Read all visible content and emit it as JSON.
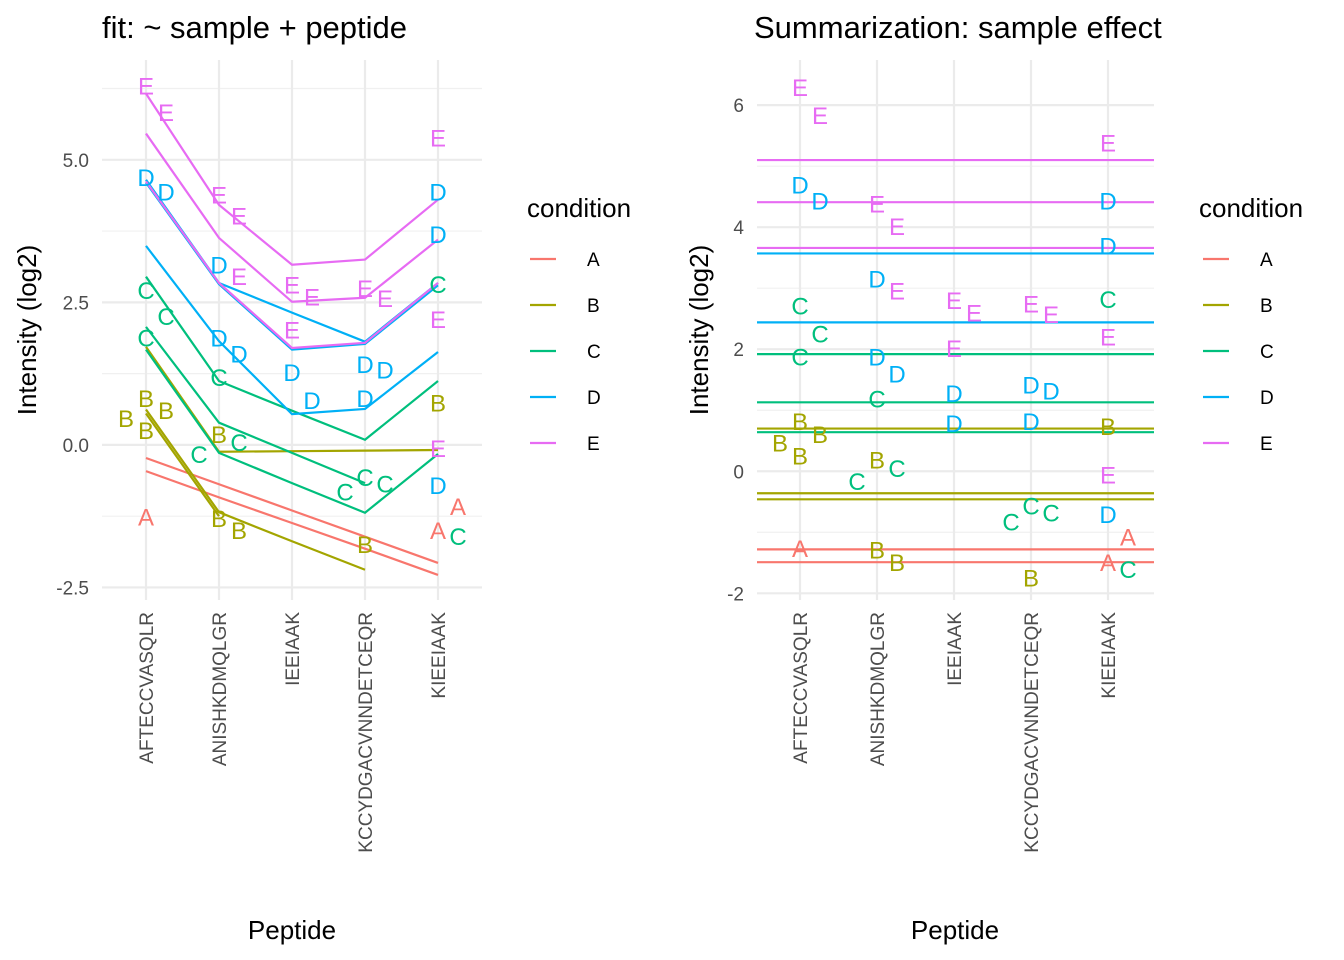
{
  "colors": {
    "A": "#F8766D",
    "B": "#A3A500",
    "C": "#00BF7D",
    "D": "#00B0F6",
    "E": "#E76BF3"
  },
  "legend": {
    "title": "condition",
    "items": [
      "A",
      "B",
      "C",
      "D",
      "E"
    ]
  },
  "chart_data": [
    {
      "type": "line",
      "title": "fit: ~ sample + peptide",
      "xlabel": "Peptide",
      "ylabel": "Intensity (log2)",
      "categories": [
        "AFTECCVASQLR",
        "ANISHKDMQLGR",
        "IEEIAAK",
        "KCCYDGACVNNDETCEQR",
        "KIEEIAAK"
      ],
      "yticks": [
        -2.5,
        0.0,
        2.5,
        5.0
      ],
      "ytick_labels": [
        "-2.5",
        "0.0",
        "2.5",
        "5.0"
      ],
      "ylim": [
        -2.72,
        6.75
      ],
      "points": [
        [
          "E",
          0,
          6.3
        ],
        [
          "E",
          0,
          5.84
        ],
        [
          "D",
          0,
          4.7
        ],
        [
          "D",
          0,
          4.44
        ],
        [
          "C",
          0,
          2.72
        ],
        [
          "C",
          0,
          2.26
        ],
        [
          "C",
          0,
          1.88
        ],
        [
          "B",
          0,
          0.82
        ],
        [
          "B",
          0,
          0.61
        ],
        [
          "B",
          0,
          0.47
        ],
        [
          "B",
          0,
          0.26
        ],
        [
          "A",
          0,
          -1.26
        ],
        [
          "E",
          1,
          4.39
        ],
        [
          "E",
          1,
          4.02
        ],
        [
          "D",
          1,
          3.16
        ],
        [
          "E",
          1,
          2.96
        ],
        [
          "D",
          1,
          1.88
        ],
        [
          "D",
          1,
          1.6
        ],
        [
          "C",
          1,
          1.19
        ],
        [
          "B",
          1,
          0.19
        ],
        [
          "C",
          1,
          0.05
        ],
        [
          "C",
          1,
          -0.16
        ],
        [
          "B",
          1,
          -1.28
        ],
        [
          "B",
          1,
          -1.49
        ],
        [
          "E",
          2,
          2.81
        ],
        [
          "E",
          2,
          2.6
        ],
        [
          "E",
          2,
          2.02
        ],
        [
          "D",
          2,
          1.28
        ],
        [
          "D",
          2,
          0.79
        ],
        [
          "E",
          3,
          2.75
        ],
        [
          "E",
          3,
          2.58
        ],
        [
          "D",
          3,
          1.42
        ],
        [
          "D",
          3,
          1.32
        ],
        [
          "D",
          3,
          0.82
        ],
        [
          "C",
          3,
          -0.56
        ],
        [
          "C",
          3,
          -0.68
        ],
        [
          "C",
          3,
          -0.82
        ],
        [
          "B",
          3,
          -1.74
        ],
        [
          "E",
          4,
          5.39
        ],
        [
          "D",
          4,
          4.44
        ],
        [
          "D",
          4,
          3.7
        ],
        [
          "C",
          4,
          2.82
        ],
        [
          "E",
          4,
          2.21
        ],
        [
          "B",
          4,
          0.74
        ],
        [
          "E",
          4,
          -0.05
        ],
        [
          "D",
          4,
          -0.7
        ],
        [
          "A",
          4,
          -1.07
        ],
        [
          "A",
          4,
          -1.49
        ],
        [
          "C",
          4,
          -1.6
        ]
      ],
      "series": [
        {
          "name": "A",
          "values": [
            -0.23,
            -0.69,
            -1.15,
            -1.61,
            -2.07
          ]
        },
        {
          "name": "A",
          "values": [
            -0.46,
            -0.92,
            -1.37,
            -1.82,
            -2.28
          ]
        },
        {
          "name": "B",
          "values": [
            1.72,
            -0.12,
            -0.11,
            -0.1,
            -0.09
          ]
        },
        {
          "name": "B",
          "values": [
            0.62,
            -1.18,
            -1.69,
            -2.19,
            null
          ]
        },
        {
          "name": "B",
          "values": [
            0.55,
            -1.25,
            null,
            null,
            null
          ]
        },
        {
          "name": "C",
          "values": [
            2.95,
            1.12,
            0.6,
            0.09,
            1.12
          ]
        },
        {
          "name": "C",
          "values": [
            2.07,
            0.39,
            -0.14,
            -0.67,
            null
          ]
        },
        {
          "name": "C",
          "values": [
            1.67,
            -0.14,
            -0.67,
            -1.19,
            -0.16
          ]
        },
        {
          "name": "D",
          "values": [
            4.65,
            2.84,
            2.32,
            1.81,
            2.84
          ]
        },
        {
          "name": "D",
          "values": [
            4.6,
            2.82,
            1.67,
            1.77,
            2.8
          ]
        },
        {
          "name": "D",
          "values": [
            3.49,
            1.82,
            0.54,
            0.63,
            1.63
          ]
        },
        {
          "name": "E",
          "values": [
            6.16,
            4.21,
            3.16,
            3.25,
            4.3
          ]
        },
        {
          "name": "E",
          "values": [
            5.46,
            3.63,
            2.51,
            2.58,
            3.6
          ]
        },
        {
          "name": "E",
          "values": [
            4.62,
            2.84,
            1.7,
            1.79,
            2.84
          ]
        }
      ]
    },
    {
      "type": "line",
      "title": "Summarization: sample effect",
      "xlabel": "Peptide",
      "ylabel": "Intensity (log2)",
      "categories": [
        "AFTECCVASQLR",
        "ANISHKDMQLGR",
        "IEEIAAK",
        "KCCYDGACVNNDETCEQR",
        "KIEEIAAK"
      ],
      "yticks": [
        -2,
        0,
        2,
        4,
        6
      ],
      "ytick_labels": [
        "-2",
        "0",
        "2",
        "4",
        "6"
      ],
      "ylim": [
        -2.11,
        6.74
      ],
      "points": "same as first chart",
      "hlines": [
        {
          "name": "E",
          "value": 5.1
        },
        {
          "name": "E",
          "value": 4.41
        },
        {
          "name": "E",
          "value": 3.66
        },
        {
          "name": "D",
          "value": 3.57
        },
        {
          "name": "D",
          "value": 2.44
        },
        {
          "name": "C",
          "value": 1.92
        },
        {
          "name": "C",
          "value": 1.13
        },
        {
          "name": "C",
          "value": 0.64
        },
        {
          "name": "B",
          "value": 0.7
        },
        {
          "name": "B",
          "value": -0.36
        },
        {
          "name": "B",
          "value": -0.46
        },
        {
          "name": "A",
          "value": -1.28
        },
        {
          "name": "A",
          "value": -1.49
        }
      ]
    }
  ]
}
